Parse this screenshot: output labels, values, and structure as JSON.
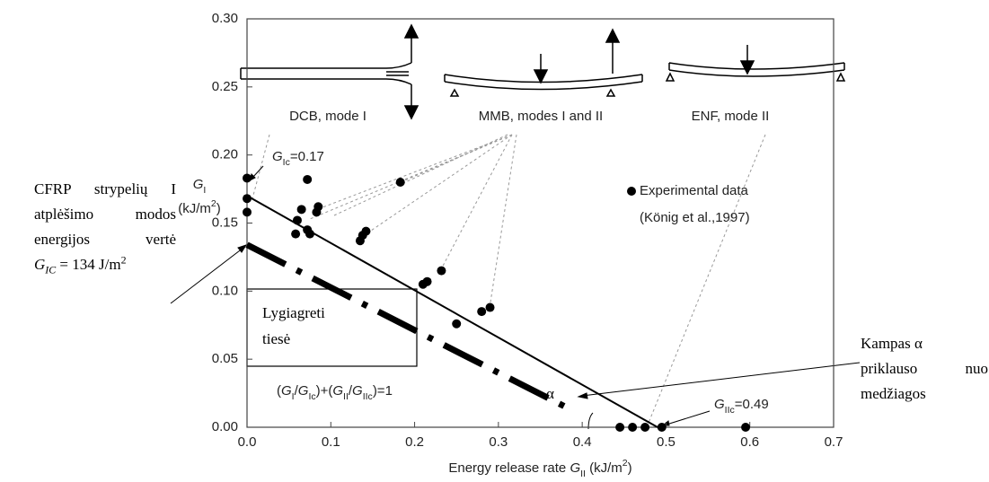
{
  "chart_data": {
    "type": "scatter",
    "xlabel": [
      {
        "text": "Energy release rate "
      },
      {
        "text": "G",
        "style": "italic"
      },
      {
        "text": "II",
        "style": "sub"
      },
      {
        "text": " (kJ/m"
      },
      {
        "text": "2",
        "style": "sup"
      },
      {
        "text": ")"
      }
    ],
    "ylabel": [
      [
        {
          "text": "G",
          "style": "italic"
        },
        {
          "text": "I",
          "style": "sub"
        }
      ],
      [
        {
          "text": "(kJ/m"
        },
        {
          "text": "2",
          "style": "sup"
        },
        {
          "text": ")"
        }
      ]
    ],
    "xlim": [
      0,
      0.7
    ],
    "ylim": [
      0,
      0.3
    ],
    "xticks": [
      {
        "value": 0,
        "label": "0.0"
      },
      0.1,
      0.2,
      0.3,
      0.4,
      0.5,
      0.6,
      0.7
    ],
    "yticks": [
      {
        "value": 0,
        "label": "0.00"
      },
      0.05,
      {
        "value": 0.1,
        "label": "0.10"
      },
      0.15,
      {
        "value": 0.2,
        "label": "0.20"
      },
      0.25,
      {
        "value": 0.3,
        "label": "0.30"
      }
    ],
    "series": [
      {
        "name": "Experimental data",
        "color": "#000000",
        "x": [
          0,
          0,
          0,
          0.058,
          0.06,
          0.065,
          0.072,
          0.072,
          0.075,
          0.083,
          0.085,
          0.135,
          0.138,
          0.142,
          0.183,
          0.21,
          0.215,
          0.232,
          0.25,
          0.28,
          0.29,
          0.445,
          0.46,
          0.475,
          0.495,
          0.595
        ],
        "values": [
          0.183,
          0.168,
          0.158,
          0.142,
          0.152,
          0.16,
          0.182,
          0.145,
          0.142,
          0.158,
          0.162,
          0.137,
          0.141,
          0.144,
          0.18,
          0.105,
          0.107,
          0.115,
          0.076,
          0.085,
          0.088,
          0,
          0,
          0,
          0,
          0
        ]
      }
    ],
    "legend_note": "(König et al.,1997)",
    "lines": [
      {
        "color": "#000000",
        "x": [
          0,
          0.49
        ],
        "values": [
          0.17,
          0
        ]
      },
      {
        "color": "#000000",
        "dash": "dash-dot",
        "x": [
          0,
          0.38
        ],
        "values": [
          0.134,
          0.015
        ]
      }
    ],
    "specimens": [
      "DCB, mode I",
      "MMB, modes I and II",
      "ENF, mode II"
    ],
    "annotations": {
      "gic": [
        {
          "text": "G",
          "style": "italic"
        },
        {
          "text": "Ic",
          "style": "sub"
        },
        {
          "text": "=0.17"
        }
      ],
      "giic": [
        {
          "text": "G",
          "style": "italic"
        },
        {
          "text": "IIc",
          "style": "sub"
        },
        {
          "text": "=0.49"
        }
      ],
      "criterion": [
        {
          "text": "("
        },
        {
          "text": "G",
          "style": "italic"
        },
        {
          "text": "I",
          "style": "sub"
        },
        {
          "text": "/"
        },
        {
          "text": "G",
          "style": "italic"
        },
        {
          "text": "Ic",
          "style": "sub"
        },
        {
          "text": ")+("
        },
        {
          "text": "G",
          "style": "italic"
        },
        {
          "text": "II",
          "style": "sub"
        },
        {
          "text": "/"
        },
        {
          "text": "G",
          "style": "italic"
        },
        {
          "text": "IIc",
          "style": "sub"
        },
        {
          "text": ")=1"
        }
      ],
      "alpha": "α",
      "box": [
        "Lygiagreti",
        "tiesė"
      ],
      "left_note": [
        [
          {
            "text": "CFRP strypelių I"
          }
        ],
        [
          {
            "text": "atplėšimo modos"
          }
        ],
        [
          {
            "text": "energijos vertė"
          }
        ],
        [
          {
            "text": "G",
            "style": "italic"
          },
          {
            "text": "IC",
            "style": "sub-italic"
          },
          {
            "text": " = 134 J/m"
          },
          {
            "text": "2",
            "style": "sup"
          }
        ]
      ],
      "right_note": [
        "Kampas α",
        "priklauso nuo",
        "medžiagos"
      ]
    }
  }
}
